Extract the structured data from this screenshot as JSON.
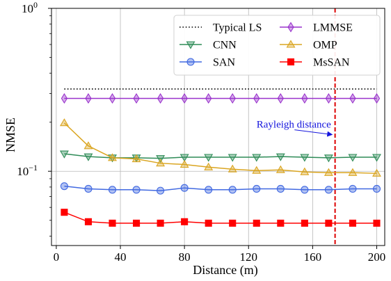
{
  "chart_data": {
    "type": "line",
    "xlabel": "Distance (m)",
    "ylabel": "NMSE",
    "xlim": [
      -3,
      205
    ],
    "ylim": [
      0.035,
      1.0
    ],
    "yscale": "log",
    "grid": true,
    "legend_position": "top-right",
    "x_ticks": [
      0,
      40,
      80,
      120,
      160,
      200
    ],
    "x_tick_labels": [
      "0",
      "40",
      "80",
      "120",
      "160",
      "200"
    ],
    "y_ticks": [
      {
        "value": 1.0,
        "base": "10",
        "exp": "0"
      },
      {
        "value": 0.1,
        "base": "10",
        "exp": "−1"
      }
    ],
    "x": [
      5,
      20,
      35,
      50,
      65,
      80,
      95,
      110,
      125,
      140,
      155,
      170,
      185,
      200
    ],
    "series": [
      {
        "name": "Typical LS",
        "color": "#000000",
        "dash": "dotted",
        "marker": "none",
        "values": [
          0.32,
          0.32,
          0.32,
          0.32,
          0.32,
          0.32,
          0.32,
          0.32,
          0.32,
          0.32,
          0.32,
          0.32,
          0.32,
          0.32
        ]
      },
      {
        "name": "CNN",
        "color": "#2e8b57",
        "dash": "solid",
        "marker": "triangle-down",
        "values": [
          0.128,
          0.123,
          0.121,
          0.121,
          0.12,
          0.122,
          0.122,
          0.122,
          0.122,
          0.123,
          0.122,
          0.121,
          0.122,
          0.122
        ]
      },
      {
        "name": "SAN",
        "color": "#4169e1",
        "dash": "solid",
        "marker": "circle",
        "values": [
          0.081,
          0.078,
          0.077,
          0.077,
          0.076,
          0.079,
          0.077,
          0.077,
          0.078,
          0.078,
          0.077,
          0.077,
          0.078,
          0.078
        ]
      },
      {
        "name": "LMMSE",
        "color": "#9932cc",
        "dash": "solid",
        "marker": "diamond",
        "values": [
          0.28,
          0.28,
          0.28,
          0.28,
          0.28,
          0.28,
          0.28,
          0.28,
          0.28,
          0.28,
          0.28,
          0.28,
          0.28,
          0.28
        ]
      },
      {
        "name": "OMP",
        "color": "#daa520",
        "dash": "solid",
        "marker": "triangle-up",
        "values": [
          0.198,
          0.143,
          0.121,
          0.119,
          0.112,
          0.11,
          0.106,
          0.103,
          0.101,
          0.102,
          0.099,
          0.098,
          0.098,
          0.097
        ]
      },
      {
        "name": "MsSAN",
        "color": "#ff0000",
        "dash": "solid",
        "marker": "square",
        "values": [
          0.056,
          0.049,
          0.048,
          0.048,
          0.048,
          0.049,
          0.048,
          0.048,
          0.048,
          0.048,
          0.048,
          0.048,
          0.048,
          0.048
        ]
      }
    ],
    "vertical_lines": [
      {
        "x": 174,
        "color": "#dd0000",
        "dash": "dashed"
      }
    ],
    "annotations": [
      {
        "text": "Rayleigh distance",
        "color": "#1515dd",
        "text_x": 125,
        "text_y": 0.185,
        "arrow_to_x": 173,
        "arrow_to_y": 0.168
      }
    ]
  }
}
